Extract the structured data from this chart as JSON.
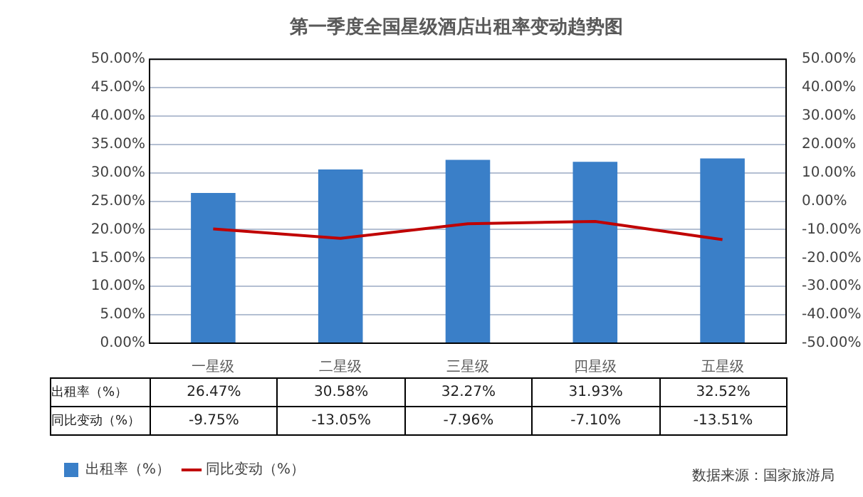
{
  "chart_data": {
    "type": "bar",
    "title": "第一季度全国星级酒店出租率变动趋势图",
    "categories": [
      "一星级",
      "二星级",
      "三星级",
      "四星级",
      "五星级"
    ],
    "series": [
      {
        "name": "出租率（%）",
        "color": "#3a7fc8",
        "values": [
          26.47,
          30.58,
          32.27,
          31.93,
          32.52
        ],
        "value_labels": [
          "26.47%",
          "30.58%",
          "32.27%",
          "31.93%",
          "32.52%"
        ]
      },
      {
        "name": "同比变动（%）",
        "type": "line",
        "axis": "y2",
        "color": "#c00000",
        "values": [
          -9.75,
          -13.05,
          -7.96,
          -7.1,
          -13.51
        ],
        "value_labels": [
          "-9.75%",
          "-13.05%",
          "-7.96%",
          "-7.10%",
          "-13.51%"
        ]
      }
    ],
    "ylim": [
      0,
      50
    ],
    "yticks": [
      {
        "value": 0,
        "label": "0.00%"
      },
      {
        "value": 5,
        "label": "5.00%"
      },
      {
        "value": 10,
        "label": "10.00%"
      },
      {
        "value": 15,
        "label": "15.00%"
      },
      {
        "value": 20,
        "label": "20.00%"
      },
      {
        "value": 25,
        "label": "25.00%"
      },
      {
        "value": 30,
        "label": "30.00%"
      },
      {
        "value": 35,
        "label": "35.00%"
      },
      {
        "value": 40,
        "label": "40.00%"
      },
      {
        "value": 45,
        "label": "45.00%"
      },
      {
        "value": 50,
        "label": "50.00%"
      }
    ],
    "y2lim": [
      -50,
      50
    ],
    "y2ticks": [
      {
        "value": -50,
        "label": "-50.00%"
      },
      {
        "value": -40,
        "label": "-40.00%"
      },
      {
        "value": -30,
        "label": "-30.00%"
      },
      {
        "value": -20,
        "label": "-20.00%"
      },
      {
        "value": -10,
        "label": "-10.00%"
      },
      {
        "value": 0,
        "label": "0.00%"
      },
      {
        "value": 10,
        "label": "10.00%"
      },
      {
        "value": 20,
        "label": "20.00%"
      },
      {
        "value": 30,
        "label": "30.00%"
      },
      {
        "value": 40,
        "label": "40.00%"
      },
      {
        "value": 50,
        "label": "50.00%"
      }
    ],
    "grid": "y",
    "legend": "bottom left",
    "marker": "none",
    "line_style": "solid",
    "annotations": [
      "数据来源：国家旅游局"
    ]
  }
}
